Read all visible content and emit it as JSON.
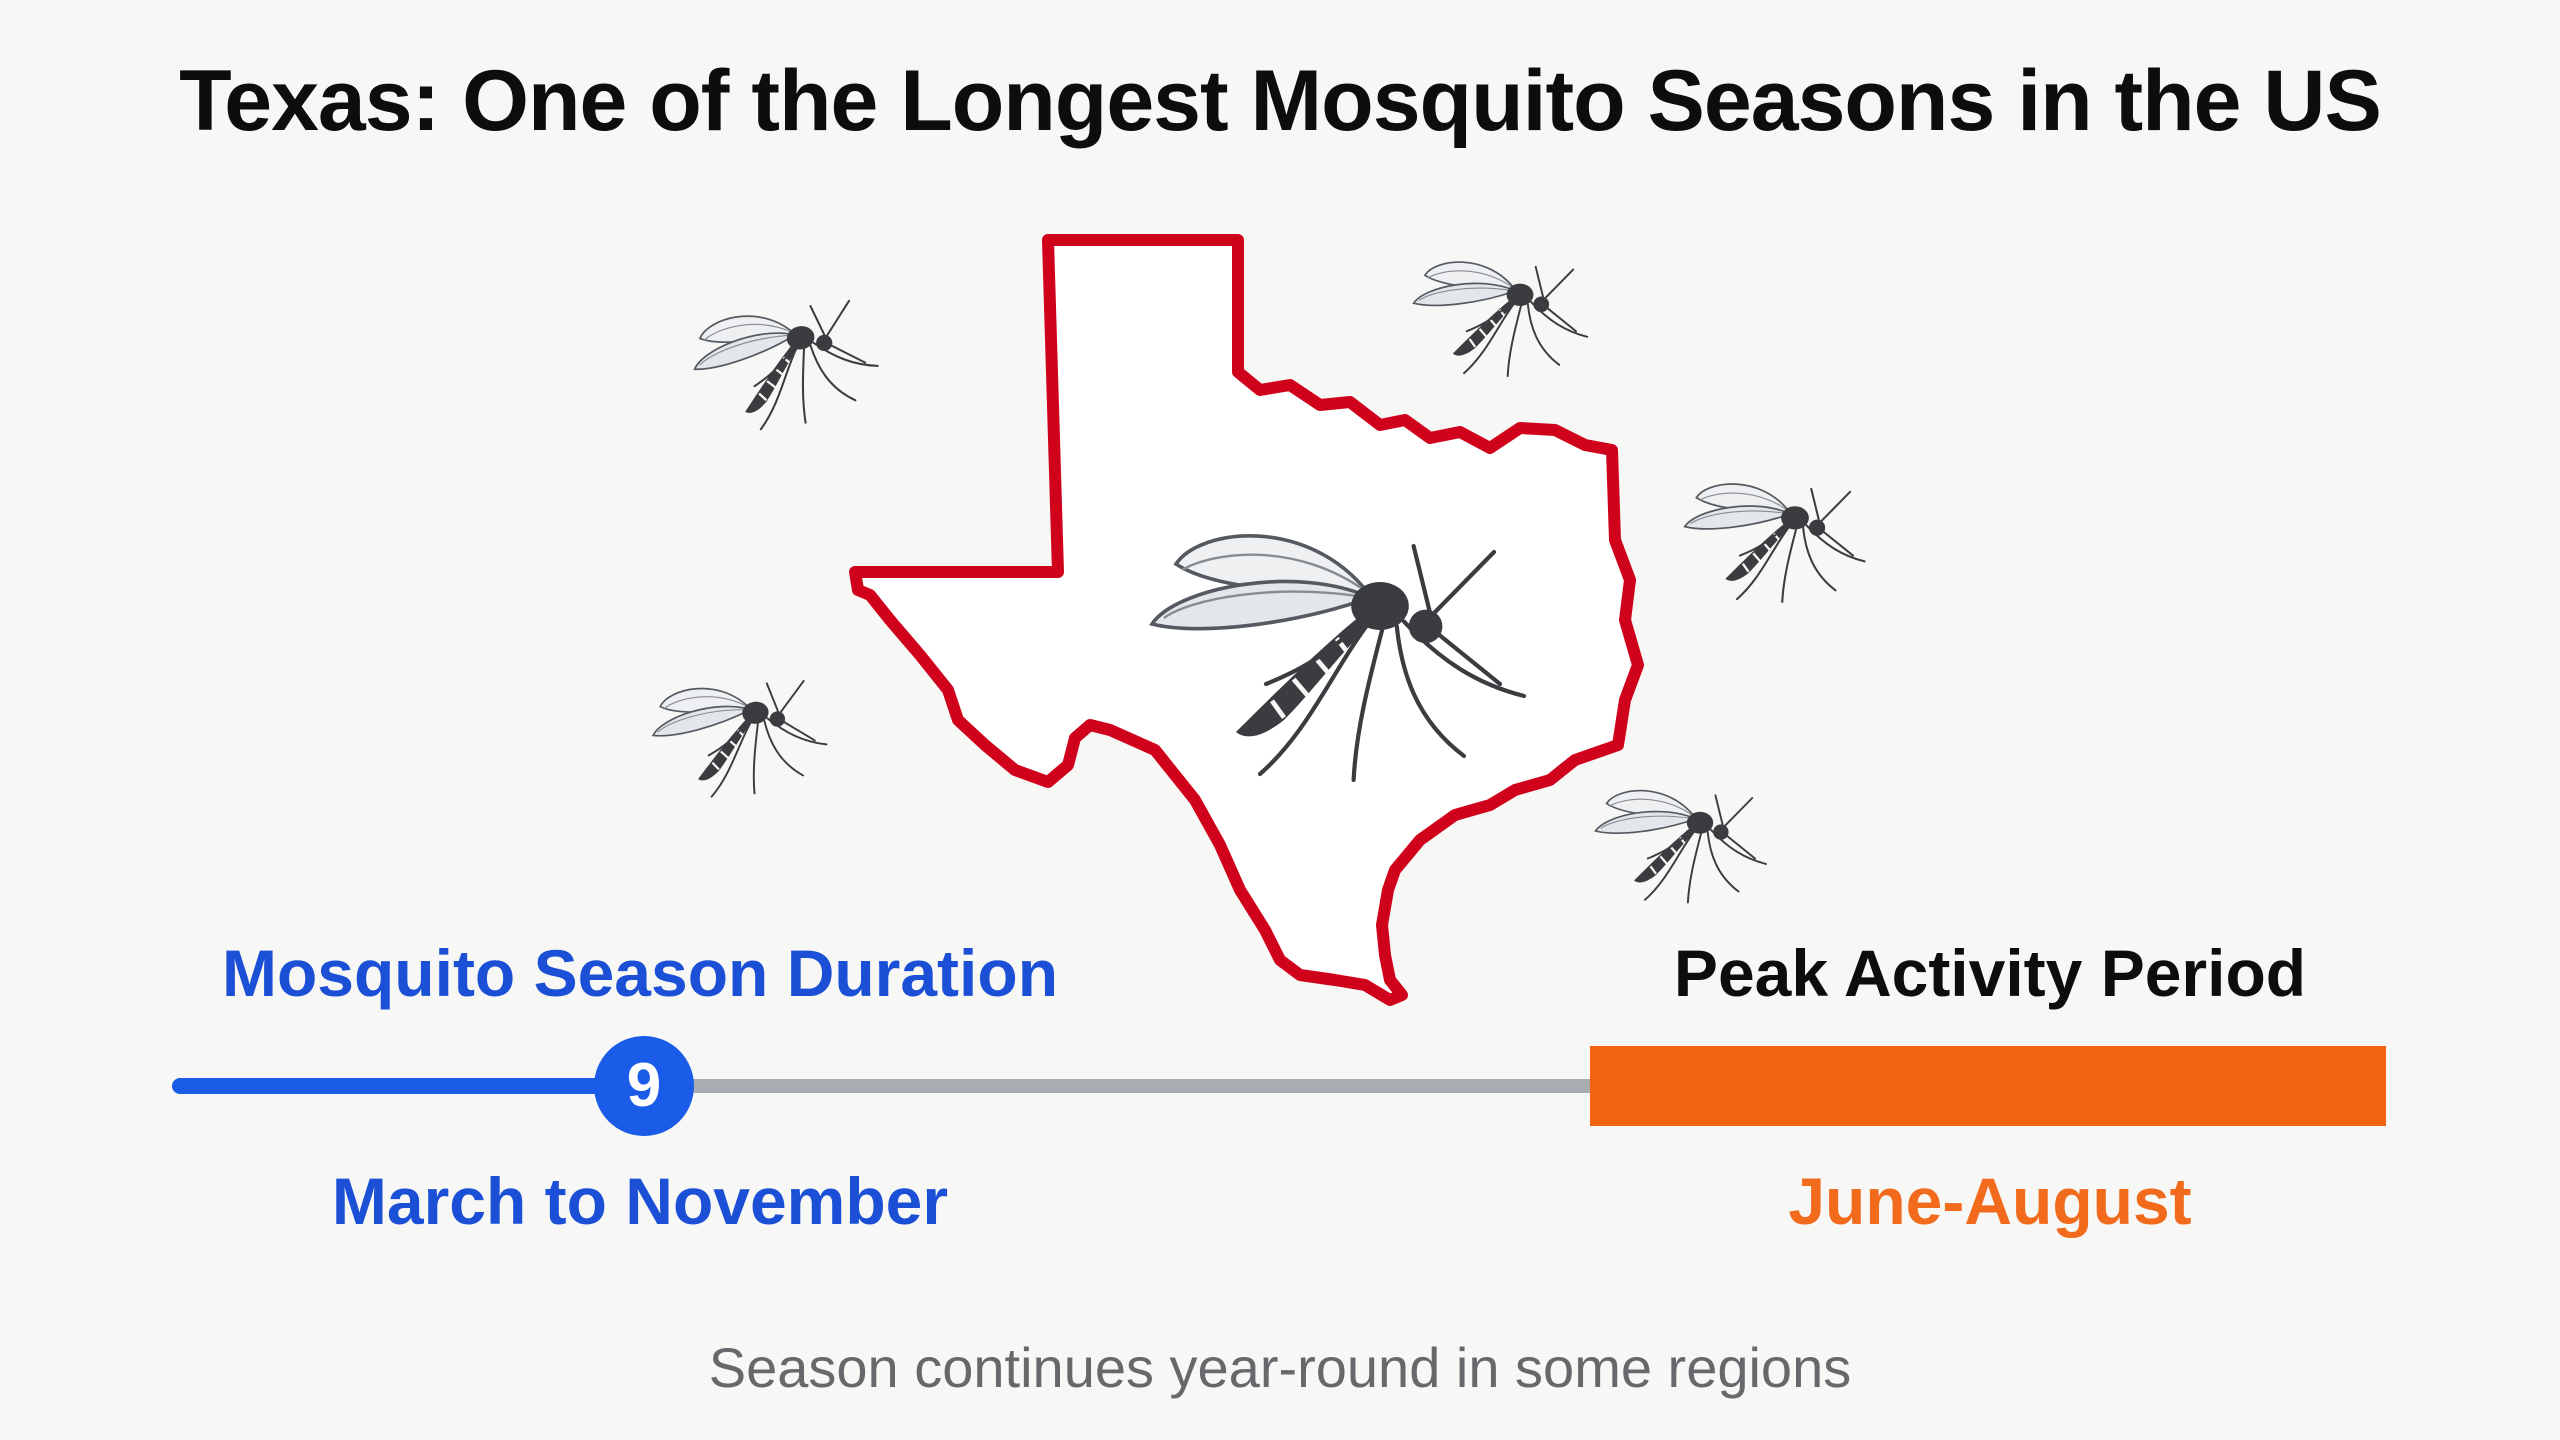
{
  "title": "Texas: One of the Longest Mosquito Seasons in the US",
  "season": {
    "heading": "Mosquito Season Duration",
    "months": "9",
    "range": "March to November"
  },
  "peak": {
    "heading": "Peak Activity Period",
    "range": "June-August"
  },
  "footnote": "Season continues year-round in some regions",
  "colors": {
    "texas_outline": "#d0021b",
    "season_blue": "#1a5be8",
    "peak_orange": "#f26411",
    "track_gray": "#a9adb2",
    "mosquito": "#3a3c40"
  },
  "icons": [
    "texas-map-outline",
    "mosquito-icon"
  ]
}
